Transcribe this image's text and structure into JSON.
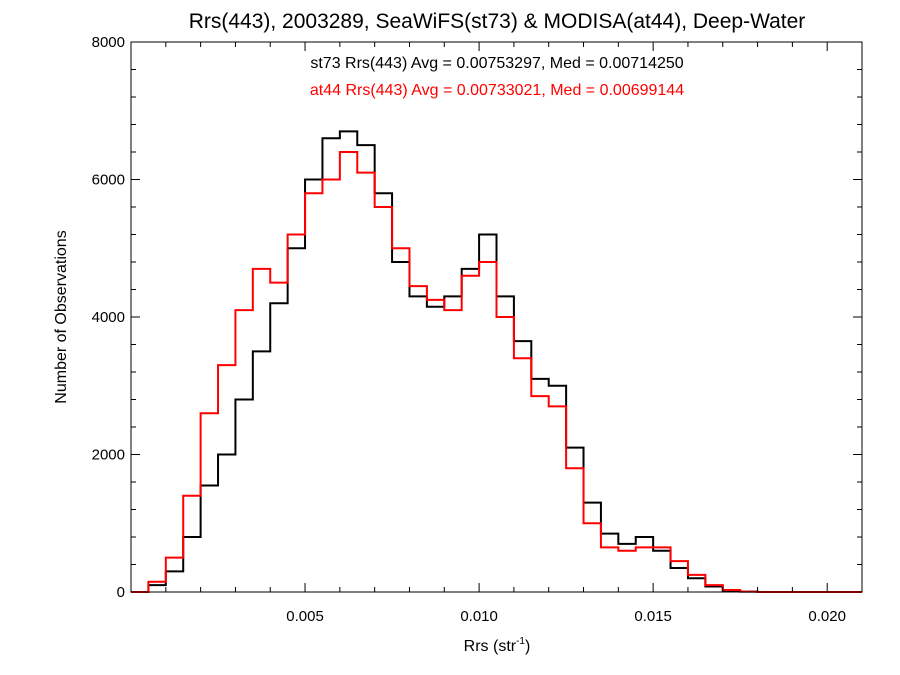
{
  "chart_data": {
    "type": "line",
    "title": "Rrs(443), 2003289, SeaWiFS(st73) & MODISA(at44), Deep-Water",
    "xlabel_main": "Rrs (str",
    "xlabel_sup": "-1",
    "xlabel_tail": ")",
    "ylabel": "Number of Observations",
    "xlim": [
      0.0,
      0.021
    ],
    "ylim": [
      0,
      8000
    ],
    "x_ticks": [
      0.005,
      0.01,
      0.015,
      0.02
    ],
    "x_tick_labels": [
      "0.005",
      "0.010",
      "0.015",
      "0.020"
    ],
    "y_ticks": [
      0,
      2000,
      4000,
      6000,
      8000
    ],
    "y_tick_labels": [
      "0",
      "2000",
      "4000",
      "6000",
      "8000"
    ],
    "grid": false,
    "step_plot": true,
    "annotations": [
      {
        "text": "st73 Rrs(443) Avg = 0.00753297, Med = 0.00714250",
        "color": "#000000"
      },
      {
        "text": "at44 Rrs(443) Avg = 0.00733021, Med = 0.00699144",
        "color": "#ff0000"
      }
    ],
    "series": [
      {
        "color": "#000000",
        "x": [
          0.0,
          0.0005,
          0.001,
          0.0015,
          0.002,
          0.0025,
          0.003,
          0.0035,
          0.004,
          0.0045,
          0.005,
          0.0055,
          0.006,
          0.0065,
          0.007,
          0.0075,
          0.008,
          0.0085,
          0.009,
          0.0095,
          0.01,
          0.0105,
          0.011,
          0.0115,
          0.012,
          0.0125,
          0.013,
          0.0135,
          0.014,
          0.0145,
          0.015,
          0.0155,
          0.016,
          0.0165,
          0.017,
          0.0175,
          0.018,
          0.019,
          0.02,
          0.021
        ],
        "y": [
          0,
          100,
          300,
          800,
          1550,
          2000,
          2800,
          3500,
          4200,
          5000,
          6000,
          6600,
          6700,
          6500,
          5800,
          4800,
          4300,
          4150,
          4300,
          4700,
          5200,
          4300,
          3650,
          3100,
          3000,
          2100,
          1300,
          850,
          700,
          800,
          600,
          350,
          200,
          80,
          20,
          5,
          0,
          0,
          0,
          0
        ]
      },
      {
        "color": "#ff0000",
        "x": [
          0.0,
          0.0005,
          0.001,
          0.0015,
          0.002,
          0.0025,
          0.003,
          0.0035,
          0.004,
          0.0045,
          0.005,
          0.0055,
          0.006,
          0.0065,
          0.007,
          0.0075,
          0.008,
          0.0085,
          0.009,
          0.0095,
          0.01,
          0.0105,
          0.011,
          0.0115,
          0.012,
          0.0125,
          0.013,
          0.0135,
          0.014,
          0.0145,
          0.015,
          0.0155,
          0.016,
          0.0165,
          0.017,
          0.0175,
          0.018,
          0.019,
          0.02,
          0.021
        ],
        "y": [
          0,
          150,
          500,
          1400,
          2600,
          3300,
          4100,
          4700,
          4500,
          5200,
          5800,
          6000,
          6400,
          6100,
          5600,
          5000,
          4450,
          4250,
          4100,
          4600,
          4800,
          4000,
          3400,
          2850,
          2700,
          1800,
          1000,
          650,
          600,
          650,
          650,
          450,
          250,
          100,
          30,
          5,
          0,
          0,
          0,
          0
        ]
      }
    ]
  }
}
